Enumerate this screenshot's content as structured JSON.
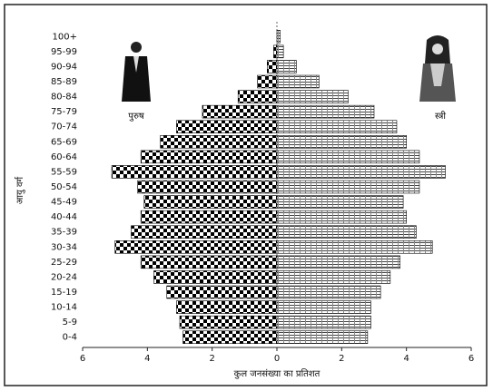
{
  "chart_data": {
    "type": "pyramid",
    "xlabel": "कुल जनसंख्या का प्रतिशत",
    "ylabel": "आयु वर्ग",
    "categories": [
      "0-4",
      "5-9",
      "10-14",
      "15-19",
      "20-24",
      "25-29",
      "30-34",
      "35-39",
      "40-44",
      "45-49",
      "50-54",
      "55-59",
      "60-64",
      "65-69",
      "70-74",
      "75-79",
      "80-84",
      "85-89",
      "90-94",
      "95-99",
      "100+"
    ],
    "series": [
      {
        "name": "पुरुष",
        "color": "#000000",
        "pattern": "checker",
        "side": "left",
        "values": [
          2.9,
          3.0,
          3.1,
          3.4,
          3.8,
          4.2,
          5.0,
          4.5,
          4.2,
          4.1,
          4.3,
          5.1,
          4.2,
          3.6,
          3.1,
          2.3,
          1.2,
          0.6,
          0.3,
          0.1,
          0
        ]
      },
      {
        "name": "स्त्री",
        "color": "#000000",
        "pattern": "stripes",
        "side": "right",
        "values": [
          2.8,
          2.9,
          2.9,
          3.2,
          3.5,
          3.8,
          4.8,
          4.3,
          4.0,
          3.9,
          4.4,
          5.2,
          4.4,
          4.0,
          3.7,
          3.0,
          2.2,
          1.3,
          0.6,
          0.2,
          0.1
        ]
      }
    ],
    "xlim": [
      -6,
      6
    ],
    "xticks": [
      {
        "value": -6,
        "label": "6"
      },
      {
        "value": -4,
        "label": "4"
      },
      {
        "value": -2,
        "label": "2"
      },
      0,
      2,
      4,
      6
    ]
  }
}
